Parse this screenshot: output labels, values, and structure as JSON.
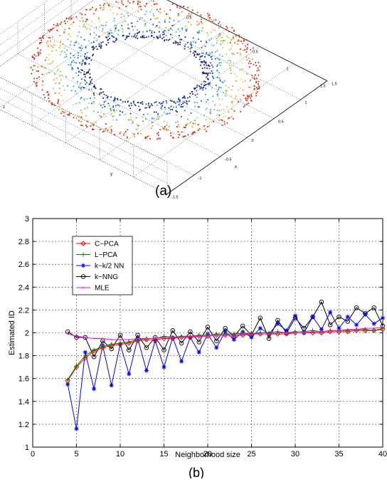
{
  "panel_a": {
    "caption": "(a)",
    "z_axis_label": "z",
    "x_axis_label": "x",
    "y_axis_label": "y",
    "z_ticks": [
      "1",
      "0.5",
      "0",
      "-0.5"
    ],
    "x_ticks": [
      "1.5",
      "1",
      "0.5",
      "0",
      "-0.5",
      "-1",
      "-1.5"
    ],
    "y_ticks": [
      "1.5",
      "1",
      "0.5",
      "0",
      "-0.5",
      "-1",
      "-1.5"
    ]
  },
  "panel_b": {
    "caption": "(b)"
  },
  "chart_data": [
    {
      "type": "scatter",
      "dimensions": 3,
      "description_of_shape": "torus-shaped point cloud",
      "colormap": [
        "#1a237e",
        "#1e5bd6",
        "#2fa3d9",
        "#46c7b0",
        "#9ad84a",
        "#e8d43a",
        "#f28a2a",
        "#d62a1e"
      ],
      "xlim": [
        -1.5,
        1.5
      ],
      "ylim": [
        -1.5,
        1.5
      ],
      "zlim": [
        -0.5,
        1
      ],
      "xlabel": "x",
      "ylabel": "y",
      "zlabel": "z",
      "grid": true
    },
    {
      "type": "line",
      "xlabel": "Neighborhood size",
      "ylabel": "Estimated ID",
      "xlim": [
        0,
        40
      ],
      "ylim": [
        1,
        3
      ],
      "xticks": [
        0,
        5,
        10,
        15,
        20,
        25,
        30,
        35,
        40
      ],
      "yticks": [
        1,
        1.2,
        1.4,
        1.6,
        1.8,
        2,
        2.2,
        2.4,
        2.6,
        2.8,
        3
      ],
      "grid": true,
      "legend_position": "top-left",
      "x": [
        4,
        5,
        6,
        7,
        8,
        9,
        10,
        11,
        12,
        13,
        14,
        15,
        16,
        17,
        18,
        19,
        20,
        21,
        22,
        23,
        24,
        25,
        26,
        27,
        28,
        29,
        30,
        31,
        32,
        33,
        34,
        35,
        36,
        37,
        38,
        39,
        40
      ],
      "series": [
        {
          "name": "C−PCA",
          "color": "#ff0000",
          "marker": "diamond",
          "values": [
            1.58,
            1.7,
            1.78,
            1.84,
            1.87,
            1.89,
            1.9,
            1.91,
            1.93,
            1.94,
            1.94,
            1.95,
            1.95,
            1.96,
            1.96,
            1.97,
            1.97,
            1.98,
            1.98,
            1.98,
            1.98,
            1.99,
            1.99,
            1.99,
            1.99,
            1.99,
            2.0,
            2.0,
            2.0,
            2.0,
            2.01,
            2.01,
            2.01,
            2.02,
            2.02,
            2.02,
            2.03
          ]
        },
        {
          "name": "L−PCA",
          "color": "#008000",
          "marker": "plus",
          "values": [
            1.59,
            1.71,
            1.8,
            1.85,
            1.88,
            1.9,
            1.91,
            1.92,
            1.94,
            1.95,
            1.95,
            1.97,
            1.96,
            1.97,
            1.97,
            1.98,
            1.98,
            1.99,
            1.99,
            1.99,
            2.0,
            1.99,
            2.0,
            2.0,
            2.01,
            2.0,
            2.01,
            2.01,
            2.02,
            2.01,
            2.02,
            2.02,
            2.02,
            2.03,
            2.03,
            2.02,
            2.04
          ]
        },
        {
          "name": "k−k/2 NN",
          "color": "#0000ff",
          "marker": "star",
          "values": [
            1.55,
            1.16,
            1.83,
            1.51,
            1.89,
            1.54,
            1.9,
            1.64,
            1.95,
            1.67,
            1.93,
            1.7,
            1.96,
            1.75,
            1.96,
            1.83,
            1.99,
            1.87,
            2.01,
            1.94,
            2.01,
            1.96,
            2.04,
            1.99,
            2.08,
            2.02,
            2.15,
            2.0,
            2.14,
            2.03,
            2.18,
            2.04,
            2.14,
            2.07,
            2.16,
            2.08,
            2.13
          ]
        },
        {
          "name": "k−NNG",
          "color": "#000000",
          "marker": "circle",
          "values": [
            2.01,
            1.96,
            1.96,
            1.79,
            1.93,
            1.86,
            1.98,
            1.85,
            1.98,
            1.87,
            1.96,
            1.85,
            2.02,
            1.91,
            2.01,
            1.92,
            2.05,
            1.93,
            2.04,
            1.97,
            2.06,
            1.98,
            2.13,
            1.95,
            2.11,
            2.0,
            2.13,
            2.04,
            2.14,
            2.27,
            2.07,
            2.14,
            2.1,
            2.22,
            2.17,
            2.22,
            2.06
          ]
        },
        {
          "name": "MLE",
          "color": "#ff00ff",
          "marker": "dot",
          "values": [
            1.99,
            1.97,
            1.96,
            1.95,
            1.95,
            1.94,
            1.94,
            1.94,
            1.95,
            1.95,
            1.95,
            1.96,
            1.96,
            1.96,
            1.97,
            1.97,
            1.97,
            1.98,
            1.98,
            1.98,
            1.99,
            1.99,
            1.99,
            1.99,
            2.0,
            2.0,
            2.0,
            2.0,
            2.01,
            2.01,
            2.02,
            2.02,
            2.03,
            2.03,
            2.04,
            2.04,
            2.05
          ]
        }
      ]
    }
  ]
}
